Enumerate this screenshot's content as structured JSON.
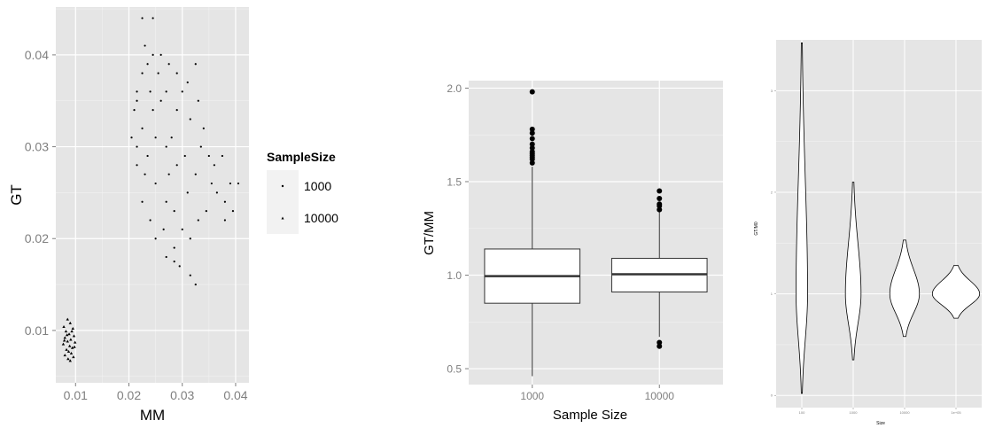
{
  "chart_data": [
    {
      "type": "scatter",
      "xlabel": "MM",
      "ylabel": "GT",
      "xlim": [
        0.0063,
        0.0425
      ],
      "ylim": [
        0.0043,
        0.0452
      ],
      "xticks": [
        0.01,
        0.02,
        0.03,
        0.04
      ],
      "xtick_labels": [
        "0.01",
        "0.02",
        "0.03",
        "0.04"
      ],
      "yticks": [
        0.01,
        0.02,
        0.03,
        0.04
      ],
      "ytick_labels": [
        "0.01",
        "0.02",
        "0.03",
        "0.04"
      ],
      "grid": true,
      "legend": {
        "title": "SampleSize",
        "placement": "right",
        "entries": [
          "1000",
          "10000"
        ]
      },
      "series": [
        {
          "name": "1000",
          "marker": "dot",
          "points": [
            [
              0.0225,
              0.044
            ],
            [
              0.0245,
              0.044
            ],
            [
              0.023,
              0.041
            ],
            [
              0.0245,
              0.04
            ],
            [
              0.026,
              0.04
            ],
            [
              0.0325,
              0.039
            ],
            [
              0.0235,
              0.039
            ],
            [
              0.0275,
              0.039
            ],
            [
              0.029,
              0.038
            ],
            [
              0.0225,
              0.038
            ],
            [
              0.0255,
              0.038
            ],
            [
              0.031,
              0.037
            ],
            [
              0.0215,
              0.036
            ],
            [
              0.024,
              0.036
            ],
            [
              0.027,
              0.036
            ],
            [
              0.03,
              0.036
            ],
            [
              0.033,
              0.035
            ],
            [
              0.0215,
              0.035
            ],
            [
              0.026,
              0.035
            ],
            [
              0.029,
              0.034
            ],
            [
              0.021,
              0.034
            ],
            [
              0.0245,
              0.034
            ],
            [
              0.0315,
              0.033
            ],
            [
              0.034,
              0.032
            ],
            [
              0.0225,
              0.032
            ],
            [
              0.028,
              0.031
            ],
            [
              0.0205,
              0.031
            ],
            [
              0.025,
              0.031
            ],
            [
              0.0335,
              0.03
            ],
            [
              0.0215,
              0.03
            ],
            [
              0.027,
              0.03
            ],
            [
              0.035,
              0.029
            ],
            [
              0.0235,
              0.029
            ],
            [
              0.0305,
              0.029
            ],
            [
              0.0375,
              0.029
            ],
            [
              0.0215,
              0.028
            ],
            [
              0.029,
              0.028
            ],
            [
              0.036,
              0.028
            ],
            [
              0.023,
              0.027
            ],
            [
              0.0275,
              0.027
            ],
            [
              0.0325,
              0.027
            ],
            [
              0.039,
              0.026
            ],
            [
              0.0355,
              0.026
            ],
            [
              0.0405,
              0.026
            ],
            [
              0.025,
              0.026
            ],
            [
              0.031,
              0.025
            ],
            [
              0.0365,
              0.025
            ],
            [
              0.027,
              0.024
            ],
            [
              0.038,
              0.024
            ],
            [
              0.0225,
              0.024
            ],
            [
              0.0345,
              0.023
            ],
            [
              0.0395,
              0.023
            ],
            [
              0.0285,
              0.023
            ],
            [
              0.024,
              0.022
            ],
            [
              0.033,
              0.022
            ],
            [
              0.038,
              0.022
            ],
            [
              0.0265,
              0.021
            ],
            [
              0.03,
              0.021
            ],
            [
              0.025,
              0.02
            ],
            [
              0.0315,
              0.02
            ],
            [
              0.0285,
              0.019
            ],
            [
              0.027,
              0.018
            ],
            [
              0.0295,
              0.017
            ],
            [
              0.0315,
              0.016
            ],
            [
              0.0325,
              0.015
            ],
            [
              0.0285,
              0.0175
            ]
          ]
        },
        {
          "name": "10000",
          "marker": "triangle",
          "points": [
            [
              0.0085,
              0.0112
            ],
            [
              0.009,
              0.0108
            ],
            [
              0.0078,
              0.0104
            ],
            [
              0.0095,
              0.0102
            ],
            [
              0.0082,
              0.0099
            ],
            [
              0.0088,
              0.0096
            ],
            [
              0.0097,
              0.0094
            ],
            [
              0.008,
              0.0092
            ],
            [
              0.0091,
              0.009
            ],
            [
              0.0085,
              0.0088
            ],
            [
              0.0099,
              0.0087
            ],
            [
              0.0077,
              0.0085
            ],
            [
              0.0089,
              0.0083
            ],
            [
              0.0094,
              0.0081
            ],
            [
              0.0083,
              0.0079
            ],
            [
              0.0087,
              0.0077
            ],
            [
              0.0092,
              0.0075
            ],
            [
              0.008,
              0.0073
            ],
            [
              0.0096,
              0.0071
            ],
            [
              0.0086,
              0.0069
            ],
            [
              0.009,
              0.0067
            ],
            [
              0.0084,
              0.0095
            ],
            [
              0.0093,
              0.0099
            ],
            [
              0.0079,
              0.0089
            ],
            [
              0.0098,
              0.0082
            ]
          ]
        }
      ]
    },
    {
      "type": "box",
      "xlabel": "Sample Size",
      "ylabel": "GT/MM",
      "categories": [
        "1000",
        "10000"
      ],
      "ylim": [
        0.415,
        2.04
      ],
      "yticks": [
        0.5,
        1.0,
        1.5,
        2.0
      ],
      "ytick_labels": [
        "0.5",
        "1.0",
        "1.5",
        "2.0"
      ],
      "grid": true,
      "boxes": [
        {
          "category": "1000",
          "whisker_low": 0.46,
          "q1": 0.85,
          "median": 0.995,
          "q3": 1.14,
          "whisker_high": 1.58,
          "outliers": [
            1.6,
            1.62,
            1.63,
            1.64,
            1.65,
            1.66,
            1.68,
            1.7,
            1.73,
            1.76,
            1.78,
            1.98
          ]
        },
        {
          "category": "10000",
          "whisker_low": 0.67,
          "q1": 0.91,
          "median": 1.005,
          "q3": 1.09,
          "whisker_high": 1.34,
          "outliers": [
            1.35,
            1.37,
            1.38,
            1.41,
            1.45,
            0.62,
            0.64
          ]
        }
      ]
    },
    {
      "type": "violin",
      "xlabel": "Size",
      "ylabel": "GT/M0",
      "categories": [
        "100",
        "1000",
        "10000",
        "1e+05"
      ],
      "ylim": [
        -0.12,
        3.5
      ],
      "yticks": [
        0,
        1,
        2,
        3
      ],
      "ytick_labels": [
        "0",
        "1",
        "2",
        "3"
      ],
      "grid": true,
      "violins": [
        {
          "category": "100",
          "min": 0.02,
          "max": 3.47,
          "mode": 1.0,
          "max_half_width": 0.028
        },
        {
          "category": "1000",
          "min": 0.35,
          "max": 2.1,
          "mode": 1.0,
          "max_half_width": 0.038
        },
        {
          "category": "10000",
          "min": 0.58,
          "max": 1.53,
          "mode": 1.0,
          "max_half_width": 0.072
        },
        {
          "category": "1e+05",
          "min": 0.76,
          "max": 1.28,
          "mode": 1.0,
          "max_half_width": 0.115
        }
      ]
    }
  ]
}
